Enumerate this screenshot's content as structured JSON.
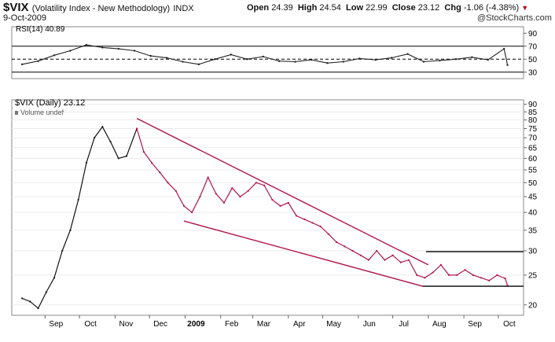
{
  "header": {
    "symbol": "$VIX",
    "description": "(Volatility Index - New Methodology)",
    "exchange": "INDX",
    "date": "9-Oct-2009",
    "open_label": "Open",
    "open": "24.39",
    "high_label": "High",
    "high": "24.54",
    "low_label": "Low",
    "low": "22.99",
    "close_label": "Close",
    "close": "23.12",
    "chg_label": "Chg",
    "chg": "-1.06 (-4.38%)",
    "watermark": "@StockCharts.com"
  },
  "chart_data": [
    {
      "type": "line",
      "title": "RSI(14) 40.89",
      "indicator": "RSI(14)",
      "value": 40.89,
      "ylim": [
        20,
        100
      ],
      "yticks": [
        30,
        50,
        70,
        90
      ],
      "reference_lines": [
        30,
        50,
        70
      ],
      "x": [
        "2008-08-12",
        "2008-08-26",
        "2008-09-09",
        "2008-09-23",
        "2008-10-07",
        "2008-10-21",
        "2008-11-04",
        "2008-11-18",
        "2008-12-02",
        "2008-12-16",
        "2008-12-30",
        "2009-01-13",
        "2009-01-27",
        "2009-02-10",
        "2009-02-24",
        "2009-03-10",
        "2009-03-24",
        "2009-04-07",
        "2009-04-21",
        "2009-05-05",
        "2009-05-19",
        "2009-06-02",
        "2009-06-16",
        "2009-06-30",
        "2009-07-14",
        "2009-07-28",
        "2009-08-11",
        "2009-08-25",
        "2009-09-08",
        "2009-09-22",
        "2009-10-06",
        "2009-10-09"
      ],
      "values": [
        42,
        47,
        56,
        63,
        72,
        68,
        66,
        63,
        55,
        52,
        46,
        42,
        50,
        57,
        50,
        54,
        47,
        46,
        49,
        44,
        46,
        51,
        49,
        52,
        58,
        46,
        48,
        50,
        53,
        49,
        66,
        41
      ]
    },
    {
      "type": "line",
      "title": "$VIX (Daily) 23.12",
      "series": [
        {
          "name": "$VIX (Daily)",
          "last": 23.12
        }
      ],
      "volume_label": "Volume undef",
      "scale": "log",
      "ylim": [
        18.5,
        93
      ],
      "yticks": [
        20,
        25,
        30,
        35,
        40,
        45,
        50,
        55,
        60,
        65,
        70,
        75,
        80,
        85,
        90
      ],
      "x_ticks": [
        "Sep",
        "Oct",
        "Nov",
        "Dec",
        "2009",
        "Feb",
        "Mar",
        "Apr",
        "May",
        "Jun",
        "Jul",
        "Aug",
        "Sep",
        "Oct"
      ],
      "x": [
        "2008-08-12",
        "2008-08-19",
        "2008-08-26",
        "2008-09-02",
        "2008-09-09",
        "2008-09-16",
        "2008-09-23",
        "2008-09-30",
        "2008-10-07",
        "2008-10-14",
        "2008-10-21",
        "2008-10-28",
        "2008-11-04",
        "2008-11-11",
        "2008-11-20",
        "2008-11-26",
        "2008-12-03",
        "2008-12-10",
        "2008-12-17",
        "2008-12-24",
        "2008-12-31",
        "2009-01-07",
        "2009-01-14",
        "2009-01-21",
        "2009-01-28",
        "2009-02-04",
        "2009-02-11",
        "2009-02-18",
        "2009-02-25",
        "2009-03-04",
        "2009-03-11",
        "2009-03-18",
        "2009-03-25",
        "2009-04-01",
        "2009-04-08",
        "2009-04-15",
        "2009-04-22",
        "2009-04-29",
        "2009-05-06",
        "2009-05-13",
        "2009-05-20",
        "2009-05-27",
        "2009-06-03",
        "2009-06-10",
        "2009-06-17",
        "2009-06-24",
        "2009-07-01",
        "2009-07-08",
        "2009-07-15",
        "2009-07-22",
        "2009-07-29",
        "2009-08-05",
        "2009-08-12",
        "2009-08-19",
        "2009-08-26",
        "2009-09-02",
        "2009-09-09",
        "2009-09-16",
        "2009-09-23",
        "2009-09-30",
        "2009-10-07",
        "2009-10-09"
      ],
      "values": [
        21,
        20.5,
        19.5,
        22,
        24.5,
        30,
        35,
        44,
        58,
        70,
        76,
        68,
        60,
        61,
        75,
        63,
        58,
        54,
        50,
        47,
        42,
        40,
        45,
        52,
        46,
        43,
        48,
        45,
        47,
        50,
        49,
        44,
        42,
        43,
        39,
        38,
        37,
        36,
        34,
        32,
        31,
        30,
        29,
        28,
        30,
        28,
        29,
        27.5,
        28,
        25,
        24.5,
        25.5,
        27,
        25,
        25,
        26,
        25,
        24.5,
        24,
        25,
        24.39,
        23.12
      ],
      "annotations": [
        {
          "type": "trendline",
          "points": [
            [
              "2008-11-20",
              80.9
            ],
            [
              "2009-08-01",
              27.0
            ]
          ]
        },
        {
          "type": "trendline",
          "points": [
            [
              "2008-12-31",
              37.5
            ],
            [
              "2009-07-27",
              23.0
            ]
          ]
        },
        {
          "type": "hline",
          "value": 29.8,
          "range": [
            "2009-07-30",
            "2009-10-23"
          ]
        },
        {
          "type": "hline",
          "value": 23.0,
          "range": [
            "2009-07-27",
            "2009-10-23"
          ]
        }
      ]
    }
  ]
}
